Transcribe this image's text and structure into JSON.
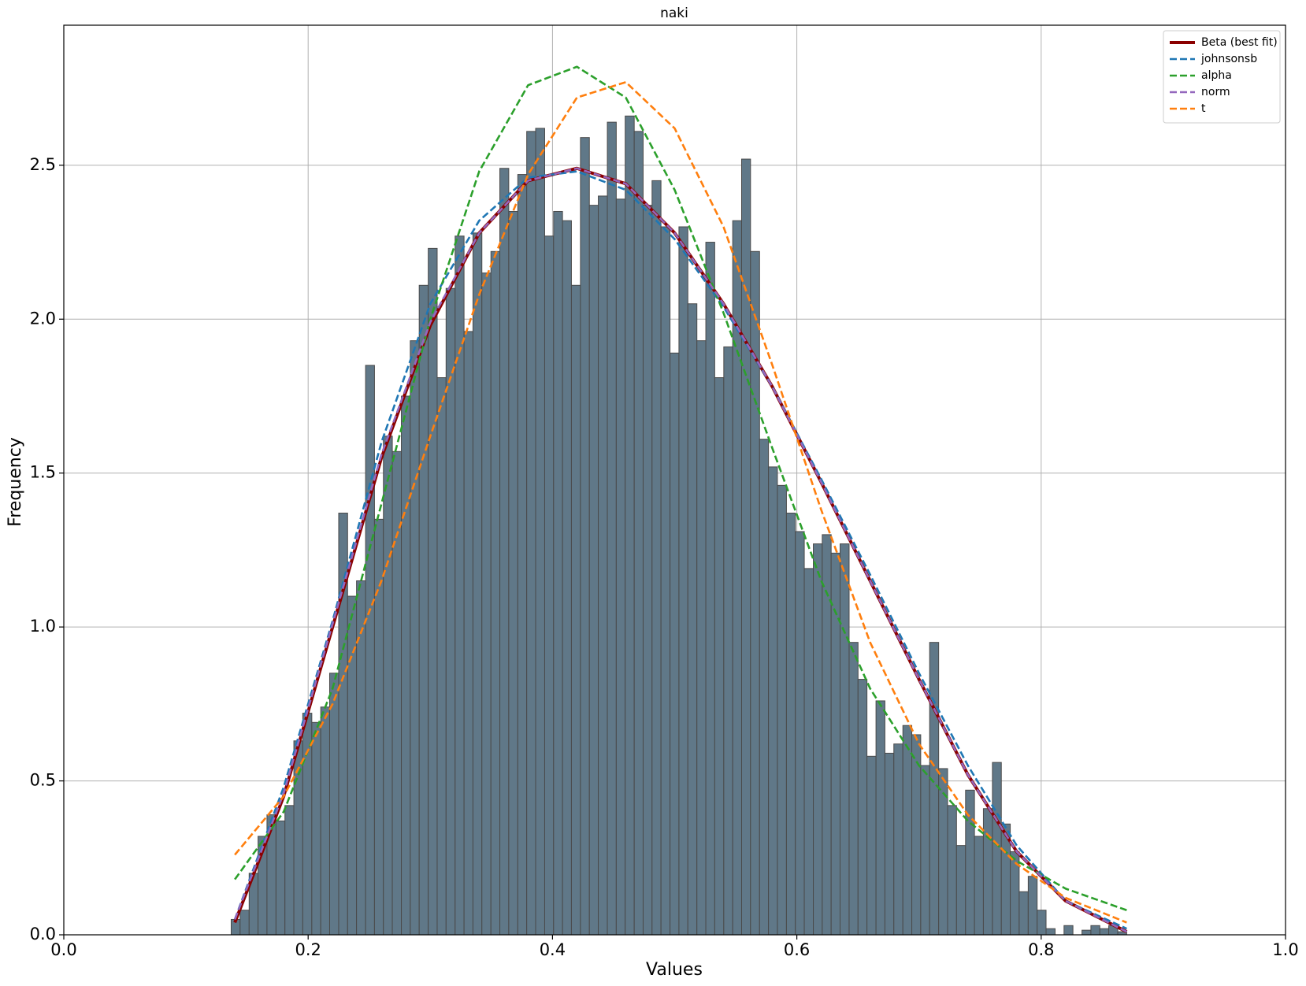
{
  "chart_data": {
    "type": "histogram",
    "title": "naki",
    "x_label": "Values",
    "y_label": "Frequency",
    "bins": [
      0.137,
      0.1443,
      0.1517,
      0.159,
      0.1663,
      0.1737,
      0.181,
      0.1883,
      0.1956,
      0.203,
      0.2103,
      0.2176,
      0.225,
      0.2323,
      0.2396,
      0.247,
      0.2543,
      0.2616,
      0.2689,
      0.2763,
      0.2836,
      0.2909,
      0.2983,
      0.3056,
      0.3129,
      0.3203,
      0.3276,
      0.3349,
      0.3422,
      0.3496,
      0.3569,
      0.3642,
      0.3716,
      0.3789,
      0.3862,
      0.3936,
      0.4009,
      0.4082,
      0.4155,
      0.4229,
      0.4302,
      0.4375,
      0.4449,
      0.4522,
      0.4595,
      0.4669,
      0.4742,
      0.4815,
      0.4888,
      0.4962,
      0.5035,
      0.5108,
      0.5182,
      0.5255,
      0.5328,
      0.5402,
      0.5475,
      0.5548,
      0.5621,
      0.5695,
      0.5768,
      0.5841,
      0.5915,
      0.5988,
      0.6061,
      0.6135,
      0.6208,
      0.6281,
      0.6354,
      0.6428,
      0.6501,
      0.6574,
      0.6648,
      0.6721,
      0.6794,
      0.6868,
      0.6941,
      0.7014,
      0.7087,
      0.7161,
      0.7234,
      0.7307,
      0.7381,
      0.7454,
      0.7527,
      0.7601,
      0.7674,
      0.7747,
      0.782,
      0.7894,
      0.7967,
      0.804,
      0.8114,
      0.8187,
      0.826,
      0.8334,
      0.8407,
      0.848,
      0.8553,
      0.8627,
      0.87
    ],
    "values": [
      0.05,
      0.08,
      0.2,
      0.32,
      0.39,
      0.37,
      0.42,
      0.63,
      0.72,
      0.69,
      0.74,
      0.85,
      1.37,
      1.1,
      1.15,
      1.85,
      1.35,
      1.62,
      1.57,
      1.75,
      1.93,
      2.11,
      2.23,
      1.81,
      2.1,
      2.27,
      1.96,
      2.28,
      2.15,
      2.22,
      2.49,
      2.35,
      2.47,
      2.61,
      2.62,
      2.27,
      2.35,
      2.32,
      2.11,
      2.59,
      2.37,
      2.4,
      2.64,
      2.39,
      2.66,
      2.61,
      2.37,
      2.45,
      2.3,
      1.89,
      2.3,
      2.05,
      1.93,
      2.25,
      1.81,
      1.91,
      2.32,
      2.52,
      2.22,
      1.61,
      1.52,
      1.46,
      1.37,
      1.31,
      1.19,
      1.27,
      1.3,
      1.24,
      1.27,
      0.95,
      0.83,
      0.58,
      0.76,
      0.59,
      0.62,
      0.68,
      0.65,
      0.55,
      0.95,
      0.54,
      0.42,
      0.29,
      0.47,
      0.32,
      0.41,
      0.56,
      0.36,
      0.27,
      0.14,
      0.19,
      0.08,
      0.02,
      0,
      0.03,
      0,
      0.015,
      0.03,
      0.02,
      0.03,
      0.01
    ],
    "color": "#607888",
    "curves": {
      "x": [
        0.14,
        0.18,
        0.22,
        0.26,
        0.3,
        0.34,
        0.38,
        0.42,
        0.46,
        0.5,
        0.54,
        0.58,
        0.62,
        0.66,
        0.7,
        0.74,
        0.78,
        0.82,
        0.87
      ],
      "series": [
        {
          "name": "Beta (best fit)",
          "color": "#8b0000",
          "dashed": false,
          "values": [
            0.04,
            0.45,
            1.0,
            1.55,
            1.98,
            2.28,
            2.45,
            2.49,
            2.44,
            2.28,
            2.05,
            1.78,
            1.47,
            1.15,
            0.83,
            0.52,
            0.27,
            0.11,
            0.01
          ]
        },
        {
          "name": "johnsonsb",
          "color": "#1f77b4",
          "dashed": true,
          "values": [
            0.05,
            0.48,
            1.02,
            1.6,
            2.05,
            2.32,
            2.46,
            2.48,
            2.42,
            2.26,
            2.04,
            1.78,
            1.48,
            1.17,
            0.85,
            0.55,
            0.29,
            0.11,
            0.02
          ]
        },
        {
          "name": "alpha",
          "color": "#2ca02c",
          "dashed": true,
          "values": [
            0.18,
            0.4,
            0.8,
            1.4,
            2.0,
            2.48,
            2.76,
            2.82,
            2.72,
            2.42,
            2.02,
            1.58,
            1.15,
            0.8,
            0.55,
            0.37,
            0.24,
            0.15,
            0.08
          ]
        },
        {
          "name": "norm",
          "color": "#9467bd",
          "dashed": true,
          "values": [
            0.05,
            0.46,
            1.01,
            1.56,
            1.99,
            2.28,
            2.45,
            2.49,
            2.44,
            2.28,
            2.05,
            1.78,
            1.47,
            1.15,
            0.83,
            0.52,
            0.27,
            0.11,
            0.01
          ]
        },
        {
          "name": "t",
          "color": "#ff7f0e",
          "dashed": true,
          "values": [
            0.26,
            0.45,
            0.75,
            1.15,
            1.62,
            2.08,
            2.47,
            2.72,
            2.77,
            2.62,
            2.3,
            1.85,
            1.38,
            0.95,
            0.62,
            0.39,
            0.23,
            0.12,
            0.04
          ]
        }
      ]
    },
    "xlim": [
      0,
      1
    ],
    "ylim": [
      0,
      2.955
    ],
    "xticks": [
      {
        "value": 0,
        "label": "0.0"
      },
      0.2,
      0.4,
      0.6,
      0.8,
      {
        "value": 1,
        "label": "1.0"
      }
    ],
    "yticks": [
      {
        "value": 0,
        "label": "0.0"
      },
      0.5,
      {
        "value": 1,
        "label": "1.0"
      },
      1.5,
      {
        "value": 2,
        "label": "2.0"
      },
      2.5
    ],
    "grid": true,
    "legend": "upper right"
  }
}
